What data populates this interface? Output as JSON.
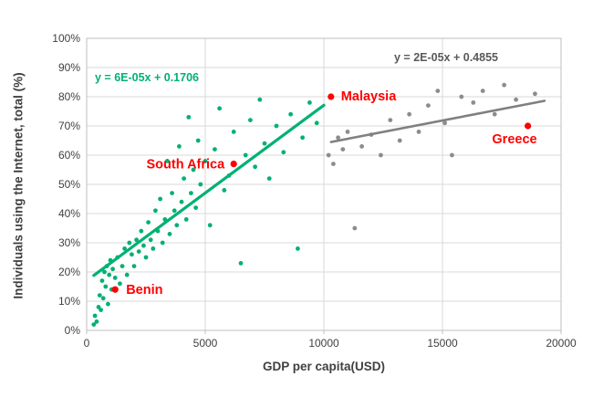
{
  "figure": {
    "background": "#ffffff"
  },
  "chart_data": {
    "type": "scatter",
    "title": "",
    "xlabel": "GDP per capita(USD)",
    "ylabel": "Individuals using the Internet, total (%)",
    "xlim": [
      0,
      20000
    ],
    "ylim": [
      0,
      1
    ],
    "x_ticks": [
      0,
      5000,
      10000,
      15000,
      20000
    ],
    "x_tick_labels": [
      "0",
      "5000",
      "10000",
      "15000",
      "20000"
    ],
    "y_ticks": [
      0,
      0.1,
      0.2,
      0.3,
      0.4,
      0.5,
      0.6,
      0.7,
      0.8,
      0.9,
      1.0
    ],
    "y_tick_labels": [
      "0%",
      "10%",
      "20%",
      "30%",
      "40%",
      "50%",
      "60%",
      "70%",
      "80%",
      "90%",
      "100%"
    ],
    "grid": true,
    "legend": "none",
    "colors": {
      "grid": "#d9d9d9",
      "plot_border": "#bfbfbf",
      "axis_text": "#404040",
      "highlight": "#ff0000"
    },
    "series": [
      {
        "name": "lower-gdp-countries",
        "color": "#00b173",
        "marker_radius": 2.4,
        "points": [
          [
            300,
            0.02
          ],
          [
            350,
            0.05
          ],
          [
            420,
            0.03
          ],
          [
            500,
            0.08
          ],
          [
            550,
            0.12
          ],
          [
            600,
            0.07
          ],
          [
            650,
            0.17
          ],
          [
            700,
            0.11
          ],
          [
            750,
            0.2
          ],
          [
            800,
            0.15
          ],
          [
            850,
            0.22
          ],
          [
            900,
            0.09
          ],
          [
            950,
            0.19
          ],
          [
            1000,
            0.24
          ],
          [
            1050,
            0.14
          ],
          [
            1100,
            0.21
          ],
          [
            1200,
            0.18
          ],
          [
            1300,
            0.25
          ],
          [
            1400,
            0.16
          ],
          [
            1500,
            0.22
          ],
          [
            1600,
            0.28
          ],
          [
            1700,
            0.19
          ],
          [
            1800,
            0.3
          ],
          [
            1900,
            0.26
          ],
          [
            2000,
            0.22
          ],
          [
            2100,
            0.31
          ],
          [
            2200,
            0.27
          ],
          [
            2300,
            0.34
          ],
          [
            2400,
            0.29
          ],
          [
            2500,
            0.25
          ],
          [
            2600,
            0.37
          ],
          [
            2700,
            0.31
          ],
          [
            2800,
            0.28
          ],
          [
            2900,
            0.41
          ],
          [
            3000,
            0.34
          ],
          [
            3100,
            0.45
          ],
          [
            3200,
            0.3
          ],
          [
            3300,
            0.38
          ],
          [
            3400,
            0.58
          ],
          [
            3500,
            0.33
          ],
          [
            3600,
            0.47
          ],
          [
            3700,
            0.41
          ],
          [
            3800,
            0.36
          ],
          [
            3900,
            0.63
          ],
          [
            4000,
            0.44
          ],
          [
            4100,
            0.52
          ],
          [
            4200,
            0.38
          ],
          [
            4300,
            0.73
          ],
          [
            4400,
            0.47
          ],
          [
            4500,
            0.55
          ],
          [
            4600,
            0.42
          ],
          [
            4700,
            0.65
          ],
          [
            4800,
            0.5
          ],
          [
            5000,
            0.58
          ],
          [
            5200,
            0.36
          ],
          [
            5400,
            0.62
          ],
          [
            5600,
            0.76
          ],
          [
            5800,
            0.48
          ],
          [
            6000,
            0.53
          ],
          [
            6200,
            0.68
          ],
          [
            6500,
            0.23
          ],
          [
            6700,
            0.6
          ],
          [
            6900,
            0.72
          ],
          [
            7100,
            0.56
          ],
          [
            7300,
            0.79
          ],
          [
            7500,
            0.64
          ],
          [
            7700,
            0.52
          ],
          [
            8000,
            0.7
          ],
          [
            8300,
            0.61
          ],
          [
            8600,
            0.74
          ],
          [
            8900,
            0.28
          ],
          [
            9100,
            0.66
          ],
          [
            9400,
            0.78
          ],
          [
            9700,
            0.71
          ]
        ]
      },
      {
        "name": "higher-gdp-countries",
        "color": "#8c8c8c",
        "marker_radius": 2.4,
        "points": [
          [
            10200,
            0.6
          ],
          [
            10400,
            0.57
          ],
          [
            10600,
            0.66
          ],
          [
            10800,
            0.62
          ],
          [
            11000,
            0.68
          ],
          [
            11300,
            0.35
          ],
          [
            11600,
            0.63
          ],
          [
            12000,
            0.67
          ],
          [
            12400,
            0.6
          ],
          [
            12800,
            0.72
          ],
          [
            13200,
            0.65
          ],
          [
            13600,
            0.74
          ],
          [
            14000,
            0.68
          ],
          [
            14400,
            0.77
          ],
          [
            14800,
            0.82
          ],
          [
            15100,
            0.71
          ],
          [
            15400,
            0.6
          ],
          [
            15800,
            0.8
          ],
          [
            16300,
            0.78
          ],
          [
            16700,
            0.82
          ],
          [
            17200,
            0.74
          ],
          [
            17600,
            0.84
          ],
          [
            18100,
            0.79
          ],
          [
            18900,
            0.81
          ]
        ]
      },
      {
        "name": "highlighted-countries",
        "color": "#ff0000",
        "marker_radius": 3.6,
        "points": [
          {
            "label": "Benin",
            "x": 1200,
            "y": 0.14,
            "anchor": "start",
            "dx": 12,
            "dy": 5
          },
          {
            "label": "South Africa",
            "x": 6200,
            "y": 0.57,
            "anchor": "end",
            "dx": -10,
            "dy": 5
          },
          {
            "label": "Malaysia",
            "x": 10300,
            "y": 0.8,
            "anchor": "start",
            "dx": 11,
            "dy": 4
          },
          {
            "label": "Greece",
            "x": 18600,
            "y": 0.7,
            "anchor": "end",
            "dx": 10,
            "dy": 19
          }
        ]
      }
    ],
    "trendlines": [
      {
        "name": "green-trendline",
        "equation": "y = 6E-05x + 0.1706",
        "slope": 6e-05,
        "intercept": 0.1706,
        "color": "#00b173",
        "label_color": "#00b173",
        "width": 3.2,
        "x1": 300,
        "y1": 0.188,
        "x2": 10000,
        "y2": 0.771
      },
      {
        "name": "gray-trendline",
        "equation": "y = 2E-05x + 0.4855",
        "slope": 2e-05,
        "intercept": 0.4855,
        "color": "#808080",
        "label_color": "#595959",
        "width": 2.6,
        "x1": 10300,
        "y1": 0.645,
        "x2": 19300,
        "y2": 0.786
      }
    ]
  }
}
